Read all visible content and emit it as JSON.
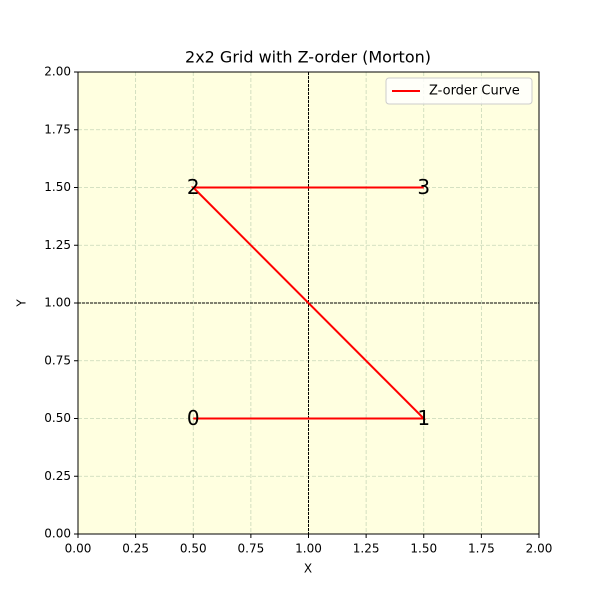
{
  "chart_data": {
    "type": "line",
    "title": "2x2 Grid with Z-order (Morton)",
    "xlabel": "X",
    "ylabel": "Y",
    "x": [
      0.5,
      1.5,
      0.5,
      1.5
    ],
    "series": [
      {
        "name": "Z-order Curve",
        "color": "red",
        "values": [
          0.5,
          0.5,
          1.5,
          1.5
        ]
      }
    ],
    "point_labels": [
      "0",
      "1",
      "2",
      "3"
    ],
    "divider_lines": {
      "x": [
        1
      ],
      "y": [
        1
      ],
      "color": "black"
    },
    "background": "lightyellow",
    "xlim": [
      0,
      2
    ],
    "ylim": [
      0,
      2
    ],
    "xticks": [
      {
        "value": 0,
        "label": "0.00"
      },
      {
        "value": 0.25,
        "label": "0.25"
      },
      {
        "value": 0.5,
        "label": "0.50"
      },
      {
        "value": 0.75,
        "label": "0.75"
      },
      {
        "value": 1,
        "label": "1.00"
      },
      {
        "value": 1.25,
        "label": "1.25"
      },
      {
        "value": 1.5,
        "label": "1.50"
      },
      {
        "value": 1.75,
        "label": "1.75"
      },
      {
        "value": 2,
        "label": "2.00"
      }
    ],
    "yticks": [
      {
        "value": 0,
        "label": "0.00"
      },
      {
        "value": 0.25,
        "label": "0.25"
      },
      {
        "value": 0.5,
        "label": "0.50"
      },
      {
        "value": 0.75,
        "label": "0.75"
      },
      {
        "value": 1,
        "label": "1.00"
      },
      {
        "value": 1.25,
        "label": "1.25"
      },
      {
        "value": 1.5,
        "label": "1.50"
      },
      {
        "value": 1.75,
        "label": "1.75"
      },
      {
        "value": 2,
        "label": "2.00"
      }
    ],
    "grid": true,
    "legend": "upper right"
  }
}
